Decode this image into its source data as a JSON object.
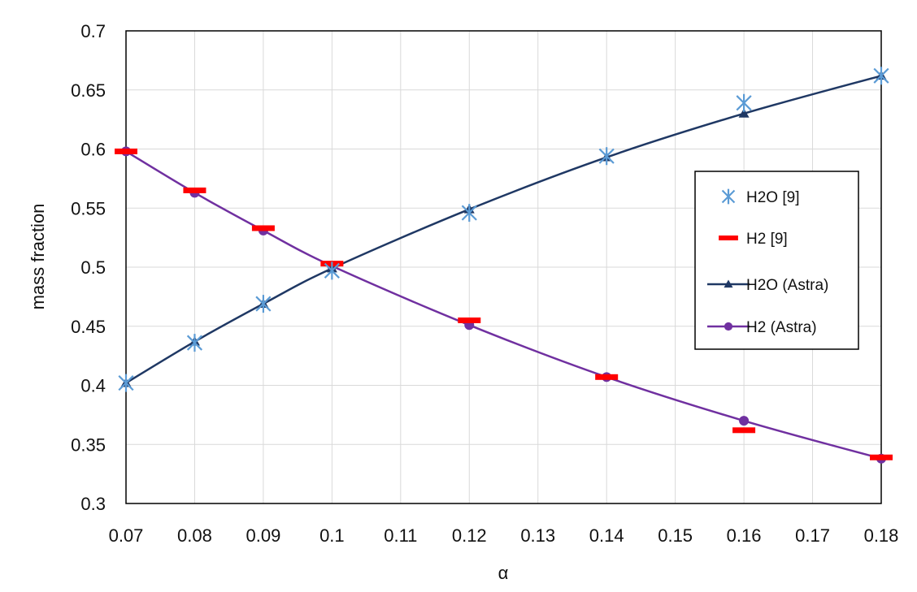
{
  "chart_data": {
    "type": "line",
    "title": "",
    "xlabel": "α",
    "ylabel": "mass fraction",
    "xlim": [
      0.07,
      0.18
    ],
    "ylim": [
      0.3,
      0.7
    ],
    "x_ticks": [
      "0.07",
      "0.08",
      "0.09",
      "0.1",
      "0.11",
      "0.12",
      "0.13",
      "0.14",
      "0.15",
      "0.16",
      "0.17",
      "0.18"
    ],
    "y_ticks": [
      "0.3",
      "0.35",
      "0.4",
      "0.45",
      "0.5",
      "0.55",
      "0.6",
      "0.65",
      "0.7"
    ],
    "grid": true,
    "legend_position": "right",
    "series": [
      {
        "name": "H2O [9]",
        "marker": "asterisk",
        "line": false,
        "color": "#5b9bd5",
        "x": [
          0.07,
          0.08,
          0.09,
          0.1,
          0.12,
          0.14,
          0.16,
          0.18
        ],
        "y": [
          0.402,
          0.436,
          0.469,
          0.497,
          0.546,
          0.594,
          0.639,
          0.662
        ]
      },
      {
        "name": "H2 [9]",
        "marker": "dash",
        "line": false,
        "color": "#ff0000",
        "x": [
          0.07,
          0.08,
          0.09,
          0.1,
          0.12,
          0.14,
          0.16,
          0.18
        ],
        "y": [
          0.598,
          0.565,
          0.533,
          0.503,
          0.455,
          0.407,
          0.362,
          0.339
        ]
      },
      {
        "name": "H2O (Astra)",
        "marker": "triangle",
        "line": true,
        "color": "#1f3864",
        "x": [
          0.07,
          0.08,
          0.09,
          0.1,
          0.12,
          0.14,
          0.16,
          0.18
        ],
        "y": [
          0.402,
          0.437,
          0.469,
          0.499,
          0.549,
          0.593,
          0.63,
          0.662
        ]
      },
      {
        "name": "H2 (Astra)",
        "marker": "circle",
        "line": true,
        "color": "#7030a0",
        "x": [
          0.07,
          0.08,
          0.09,
          0.1,
          0.12,
          0.14,
          0.16,
          0.18
        ],
        "y": [
          0.598,
          0.563,
          0.531,
          0.501,
          0.451,
          0.407,
          0.37,
          0.338
        ]
      }
    ]
  }
}
